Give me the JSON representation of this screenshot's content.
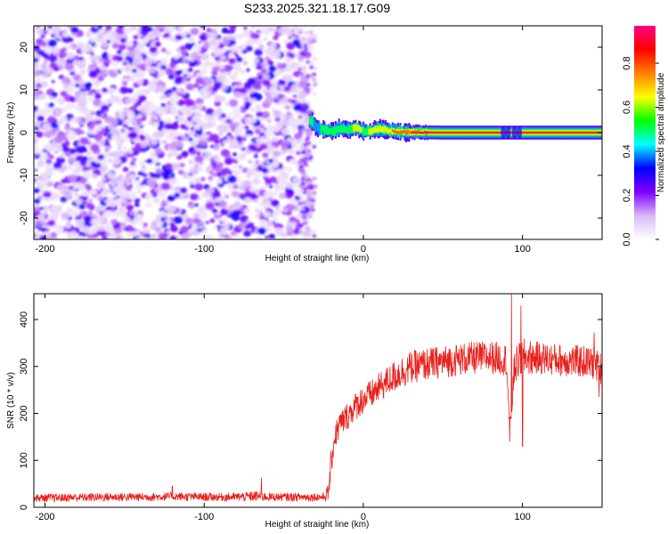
{
  "chart_data": [
    {
      "type": "heatmap",
      "title": "S233.2025.321.18.17.G09",
      "xlabel": "Height of straight line (km)",
      "ylabel": "Frequency (Hz)",
      "xlim": [
        -207,
        150
      ],
      "ylim": [
        -25,
        25
      ],
      "x_ticks": [
        -200,
        -100,
        0,
        100
      ],
      "y_ticks": [
        -20,
        -10,
        0,
        10,
        20
      ],
      "noise_region": {
        "x_range": [
          -207,
          -33
        ],
        "y_range": [
          -25,
          25
        ],
        "note": "scattered low-amplitude speckle"
      },
      "signal_track": {
        "x": [
          -34,
          -32,
          -30,
          -25,
          -20,
          -15,
          -10,
          -5,
          0,
          5,
          10,
          15,
          20,
          30,
          50,
          80,
          100,
          150
        ],
        "frequency": [
          3.0,
          2.2,
          1.2,
          0.6,
          0.4,
          1.0,
          0.6,
          1.2,
          0.3,
          0.4,
          1.0,
          0.5,
          0.2,
          0.1,
          0.0,
          0.0,
          0.0,
          0.0
        ],
        "amplitude": [
          0.55,
          0.5,
          0.45,
          0.55,
          0.5,
          0.6,
          0.55,
          0.7,
          0.6,
          0.65,
          0.75,
          0.7,
          0.85,
          0.9,
          0.92,
          0.92,
          0.9,
          0.9
        ]
      },
      "colorbar": {
        "label": "Normalized spectral amplitude",
        "range": [
          0.0,
          0.97
        ],
        "ticks": [
          "0.0",
          "0.2",
          "0.4",
          "0.6",
          "0.8"
        ],
        "tick_values": [
          0.0,
          0.2,
          0.4,
          0.6,
          0.8
        ],
        "colors": [
          "#ffffff",
          "#d8b8f8",
          "#8000ff",
          "#0000ff",
          "#00ffff",
          "#00ff00",
          "#ffff00",
          "#ff8000",
          "#ff0000",
          "#ff0080"
        ]
      }
    },
    {
      "type": "line",
      "xlabel": "Height of straight line (km)",
      "ylabel": "SNR (10 * v/v)",
      "xlim": [
        -207,
        150
      ],
      "ylim": [
        0,
        455
      ],
      "x_ticks": [
        -200,
        -100,
        0,
        100
      ],
      "y_ticks": [
        0,
        100,
        200,
        300,
        400
      ],
      "color": "#e8201c",
      "series": [
        {
          "name": "SNR",
          "x": [
            -207,
            -200,
            -180,
            -160,
            -140,
            -120,
            -100,
            -80,
            -65,
            -60,
            -50,
            -40,
            -25,
            -22,
            -20,
            -18,
            -15,
            -10,
            -5,
            0,
            5,
            10,
            15,
            20,
            25,
            30,
            40,
            50,
            60,
            70,
            80,
            90,
            92,
            95,
            100,
            110,
            120,
            130,
            140,
            145,
            150
          ],
          "values": [
            20,
            20,
            21,
            22,
            22,
            23,
            22,
            22,
            24,
            22,
            22,
            22,
            22,
            30,
            100,
            150,
            175,
            195,
            215,
            230,
            240,
            255,
            268,
            280,
            290,
            298,
            305,
            310,
            315,
            318,
            320,
            315,
            160,
            300,
            320,
            318,
            315,
            312,
            310,
            305,
            295
          ],
          "noise_amplitude": [
            8,
            9,
            9,
            9,
            9,
            9,
            9,
            9,
            12,
            9,
            9,
            9,
            9,
            20,
            30,
            30,
            30,
            30,
            30,
            32,
            32,
            32,
            32,
            35,
            35,
            35,
            35,
            35,
            35,
            35,
            35,
            35,
            20,
            40,
            40,
            35,
            35,
            35,
            35,
            35,
            35
          ],
          "spikes": [
            {
              "x": -64,
              "y": 63
            },
            {
              "x": -120,
              "y": 45
            },
            {
              "x": 93,
              "y": 455
            },
            {
              "x": 99,
              "y": 430
            },
            {
              "x": 92,
              "y": 140
            },
            {
              "x": 100,
              "y": 130
            },
            {
              "x": 145,
              "y": 372
            },
            {
              "x": 148,
              "y": 235
            },
            {
              "x": 150,
              "y": 242
            }
          ]
        }
      ]
    }
  ]
}
